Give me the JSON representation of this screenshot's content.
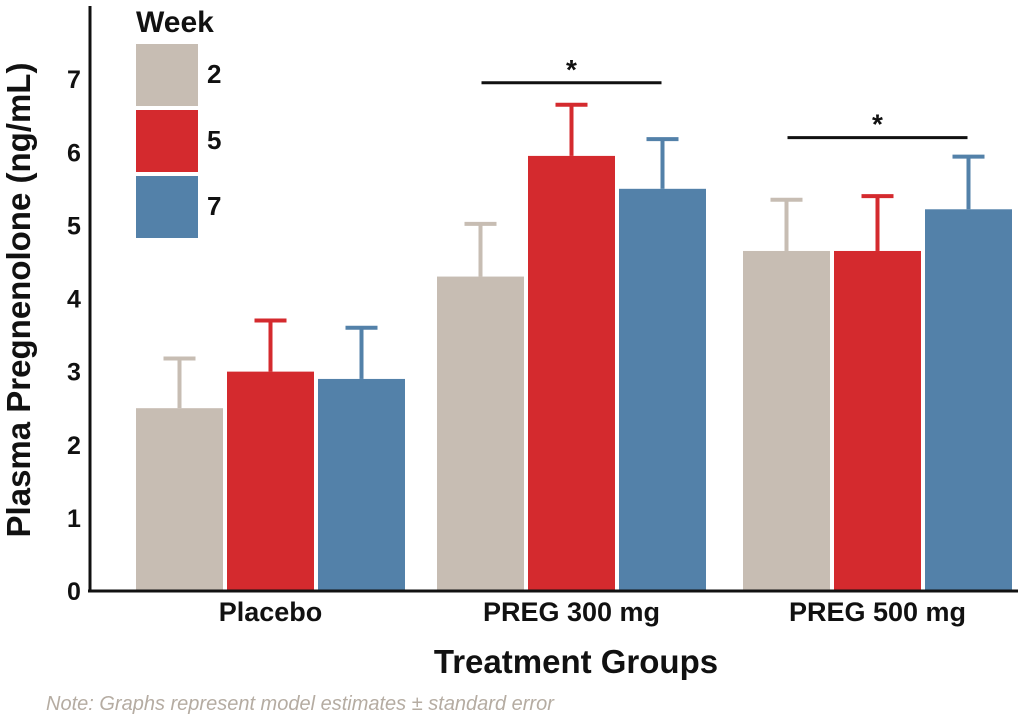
{
  "chart_data": {
    "type": "bar",
    "categories": [
      "Placebo",
      "PREG 300 mg",
      "PREG 500 mg"
    ],
    "series": [
      {
        "name": "2",
        "color": "#c7bdb3",
        "values": [
          2.5,
          4.3,
          4.65
        ],
        "errors": [
          0.68,
          0.72,
          0.7
        ]
      },
      {
        "name": "5",
        "color": "#d42a2e",
        "values": [
          3.0,
          5.95,
          4.65
        ],
        "errors": [
          0.7,
          0.7,
          0.75
        ]
      },
      {
        "name": "7",
        "color": "#5381a9",
        "values": [
          2.9,
          5.5,
          5.22
        ],
        "errors": [
          0.7,
          0.68,
          0.72
        ]
      }
    ],
    "legend_title": "Week",
    "legend_position": "top-left",
    "xlabel": "Treatment Groups",
    "ylabel": "Plasma Pregnenolone (ng/mL)",
    "ylim": [
      0,
      8
    ],
    "yticks": [
      0,
      1,
      2,
      3,
      4,
      5,
      6,
      7
    ],
    "grid": false,
    "significance": [
      {
        "category": "PREG 300 mg",
        "label": "*",
        "y": 6.95
      },
      {
        "category": "PREG 500 mg",
        "label": "*",
        "y": 6.2
      }
    ],
    "note": "Note: Graphs represent model estimates ± standard error"
  }
}
